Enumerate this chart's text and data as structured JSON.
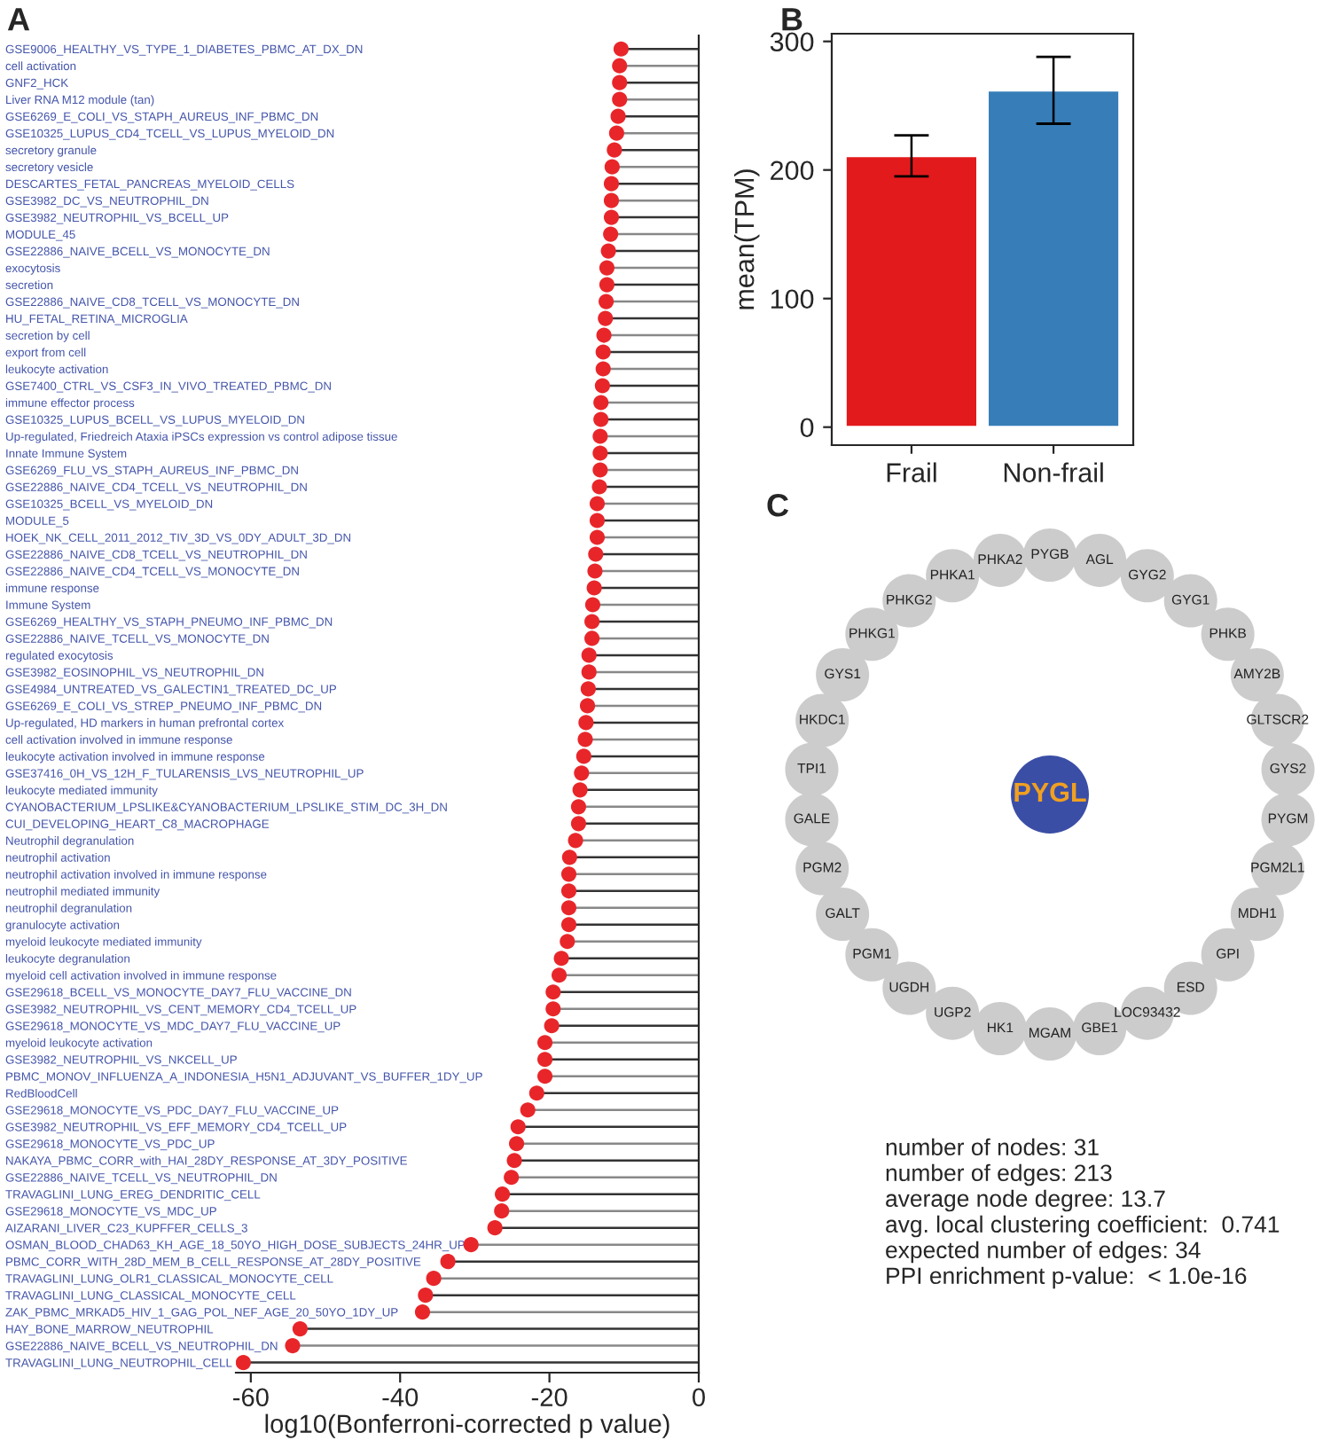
{
  "chart_data": [
    {
      "type": "lollipop",
      "title": "A",
      "orientation": "horizontal",
      "marker": "circle",
      "color": "#e8262a",
      "categories": [
        "GSE9006_HEALTHY_VS_TYPE_1_DIABETES_PBMC_AT_DX_DN",
        "cell activation",
        "GNF2_HCK",
        "Liver RNA M12 module (tan)",
        "GSE6269_E_COLI_VS_STAPH_AUREUS_INF_PBMC_DN",
        "GSE10325_LUPUS_CD4_TCELL_VS_LUPUS_MYELOID_DN",
        "secretory granule",
        "secretory vesicle",
        "DESCARTES_FETAL_PANCREAS_MYELOID_CELLS",
        "GSE3982_DC_VS_NEUTROPHIL_DN",
        "GSE3982_NEUTROPHIL_VS_BCELL_UP",
        "MODULE_45",
        "GSE22886_NAIVE_BCELL_VS_MONOCYTE_DN",
        "exocytosis",
        "secretion",
        "GSE22886_NAIVE_CD8_TCELL_VS_MONOCYTE_DN",
        "HU_FETAL_RETINA_MICROGLIA",
        "secretion by cell",
        "export from cell",
        "leukocyte activation",
        "GSE7400_CTRL_VS_CSF3_IN_VIVO_TREATED_PBMC_DN",
        "immune effector process",
        "GSE10325_LUPUS_BCELL_VS_LUPUS_MYELOID_DN",
        "Up-regulated, Friedreich Ataxia iPSCs expression vs control adipose tissue",
        "Innate Immune System",
        "GSE6269_FLU_VS_STAPH_AUREUS_INF_PBMC_DN",
        "GSE22886_NAIVE_CD4_TCELL_VS_NEUTROPHIL_DN",
        "GSE10325_BCELL_VS_MYELOID_DN",
        "MODULE_5",
        "HOEK_NK_CELL_2011_2012_TIV_3D_VS_0DY_ADULT_3D_DN",
        "GSE22886_NAIVE_CD8_TCELL_VS_NEUTROPHIL_DN",
        "GSE22886_NAIVE_CD4_TCELL_VS_MONOCYTE_DN",
        "immune response",
        "Immune System",
        "GSE6269_HEALTHY_VS_STAPH_PNEUMO_INF_PBMC_DN",
        "GSE22886_NAIVE_TCELL_VS_MONOCYTE_DN",
        "regulated exocytosis",
        "GSE3982_EOSINOPHIL_VS_NEUTROPHIL_DN",
        "GSE4984_UNTREATED_VS_GALECTIN1_TREATED_DC_UP",
        "GSE6269_E_COLI_VS_STREP_PNEUMO_INF_PBMC_DN",
        "Up-regulated, HD markers in human prefrontal cortex",
        "cell activation involved in immune response",
        "leukocyte activation involved in immune response",
        "GSE37416_0H_VS_12H_F_TULARENSIS_LVS_NEUTROPHIL_UP",
        "leukocyte mediated immunity",
        "CYANOBACTERIUM_LPSLIKE&CYANOBACTERIUM_LPSLIKE_STIM_DC_3H_DN",
        "CUI_DEVELOPING_HEART_C8_MACROPHAGE",
        "Neutrophil degranulation",
        "neutrophil activation",
        "neutrophil activation involved in immune response",
        "neutrophil mediated immunity",
        "neutrophil degranulation",
        "granulocyte activation",
        "myeloid leukocyte mediated immunity",
        "leukocyte degranulation",
        "myeloid cell activation involved in immune response",
        "GSE29618_BCELL_VS_MONOCYTE_DAY7_FLU_VACCINE_DN",
        "GSE3982_NEUTROPHIL_VS_CENT_MEMORY_CD4_TCELL_UP",
        "GSE29618_MONOCYTE_VS_MDC_DAY7_FLU_VACCINE_UP",
        "myeloid leukocyte activation",
        "GSE3982_NEUTROPHIL_VS_NKCELL_UP",
        "PBMC_MONOV_INFLUENZA_A_INDONESIA_H5N1_ADJUVANT_VS_BUFFER_1DY_UP",
        "RedBloodCell",
        "GSE29618_MONOCYTE_VS_PDC_DAY7_FLU_VACCINE_UP",
        "GSE3982_NEUTROPHIL_VS_EFF_MEMORY_CD4_TCELL_UP",
        "GSE29618_MONOCYTE_VS_PDC_UP",
        "NAKAYA_PBMC_CORR_with_HAI_28DY_RESPONSE_AT_3DY_POSITIVE",
        "GSE22886_NAIVE_TCELL_VS_NEUTROPHIL_DN",
        "TRAVAGLINI_LUNG_EREG_DENDRITIC_CELL",
        "GSE29618_MONOCYTE_VS_MDC_UP",
        "AIZARANI_LIVER_C23_KUPFFER_CELLS_3",
        "OSMAN_BLOOD_CHAD63_KH_AGE_18_50YO_HIGH_DOSE_SUBJECTS_24HR_UP",
        "PBMC_CORR_WITH_28D_MEM_B_CELL_RESPONSE_AT_28DY_POSITIVE",
        "TRAVAGLINI_LUNG_OLR1_CLASSICAL_MONOCYTE_CELL",
        "TRAVAGLINI_LUNG_CLASSICAL_MONOCYTE_CELL",
        "ZAK_PBMC_MRKAD5_HIV_1_GAG_POL_NEF_AGE_20_50YO_1DY_UP",
        "HAY_BONE_MARROW_NEUTROPHIL",
        "GSE22886_NAIVE_BCELL_VS_NEUTROPHIL_DN",
        "TRAVAGLINI_LUNG_NEUTROPHIL_CELL"
      ],
      "values": [
        -10.4,
        -10.6,
        -10.6,
        -10.6,
        -10.8,
        -11.0,
        -11.3,
        -11.6,
        -11.7,
        -11.7,
        -11.7,
        -11.8,
        -12.1,
        -12.3,
        -12.3,
        -12.4,
        -12.5,
        -12.7,
        -12.8,
        -12.8,
        -12.9,
        -13.1,
        -13.1,
        -13.2,
        -13.2,
        -13.2,
        -13.3,
        -13.6,
        -13.6,
        -13.6,
        -13.8,
        -13.9,
        -14.0,
        -14.2,
        -14.3,
        -14.3,
        -14.7,
        -14.7,
        -14.8,
        -14.9,
        -15.1,
        -15.2,
        -15.4,
        -15.7,
        -15.9,
        -16.1,
        -16.1,
        -16.5,
        -17.3,
        -17.4,
        -17.4,
        -17.4,
        -17.4,
        -17.6,
        -18.4,
        -18.7,
        -19.5,
        -19.5,
        -19.7,
        -20.6,
        -20.6,
        -20.6,
        -21.7,
        -22.9,
        -24.2,
        -24.4,
        -24.7,
        -25.1,
        -26.3,
        -26.4,
        -27.3,
        -30.5,
        -33.6,
        -35.5,
        -36.6,
        -37.0,
        -53.4,
        -54.4,
        -61.0
      ],
      "xlim": [
        -62,
        0
      ],
      "xticks": [
        -60,
        -40,
        -20,
        0
      ],
      "xlabel": "log10(Bonferroni-corrected p value)"
    },
    {
      "type": "bar",
      "title": "B",
      "categories": [
        "Frail",
        "Non-frail"
      ],
      "values": [
        211,
        262
      ],
      "colors": [
        "#e31a1c",
        "#377eb8"
      ],
      "errors": [
        16,
        26
      ],
      "ylim": [
        -14,
        306
      ],
      "yticks": [
        0,
        100,
        200,
        300
      ],
      "ylabel": "mean(TPM)"
    },
    {
      "type": "other",
      "title": "C",
      "categories": [
        "PYGL",
        "PYGB",
        "AGL",
        "GYG2",
        "GYG1",
        "PHKB",
        "AMY2B",
        "GLTSCR2",
        "GYS2",
        "PYGM",
        "PGM2L1",
        "MDH1",
        "GPI",
        "ESD",
        "LOC93432",
        "GBE1",
        "MGAM",
        "HK1",
        "UGP2",
        "UGDH",
        "PGM1",
        "GALT",
        "PGM2",
        "GALE",
        "TPI1",
        "HKDC1",
        "GYS1",
        "PHKG1",
        "PHKG2",
        "PHKA1",
        "PHKA2"
      ],
      "colors": [
        "#3b4ea6",
        "#cccccc",
        "#cccccc",
        "#cccccc",
        "#cccccc",
        "#cccccc",
        "#cccccc",
        "#cccccc",
        "#cccccc",
        "#cccccc",
        "#cccccc",
        "#cccccc",
        "#cccccc",
        "#cccccc",
        "#cccccc",
        "#cccccc",
        "#cccccc",
        "#cccccc",
        "#cccccc",
        "#cccccc",
        "#cccccc",
        "#cccccc",
        "#cccccc",
        "#cccccc",
        "#cccccc",
        "#cccccc",
        "#cccccc",
        "#cccccc",
        "#cccccc",
        "#cccccc",
        "#cccccc"
      ],
      "annotations": [
        "number of nodes: 31",
        "number of edges: 213",
        "average node degree: 13.7",
        "avg. local clustering coefficient:  0.741",
        "expected number of edges: 34",
        "PPI enrichment p-value:  < 1.0e-16"
      ]
    }
  ]
}
